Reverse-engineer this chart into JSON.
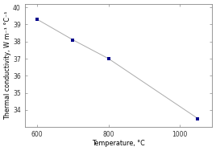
{
  "x": [
    600,
    700,
    800,
    1050
  ],
  "y": [
    39.3,
    38.1,
    37.0,
    33.5
  ],
  "xlim": [
    565,
    1090
  ],
  "ylim": [
    33,
    40.2
  ],
  "xticks": [
    600,
    800,
    1000
  ],
  "yticks": [
    34,
    35,
    36,
    37,
    38,
    39,
    40
  ],
  "xlabel": "Temperature, °C",
  "ylabel": "Thermal conductivity, W m⁻¹ °C⁻¹",
  "line_color": "#aaaaaa",
  "marker_color": "#00008b",
  "marker": "s",
  "marker_size": 3.5,
  "line_style": "-",
  "line_width": 0.7,
  "bg_color": "#ffffff",
  "tick_fontsize": 5.5,
  "label_fontsize": 5.8
}
